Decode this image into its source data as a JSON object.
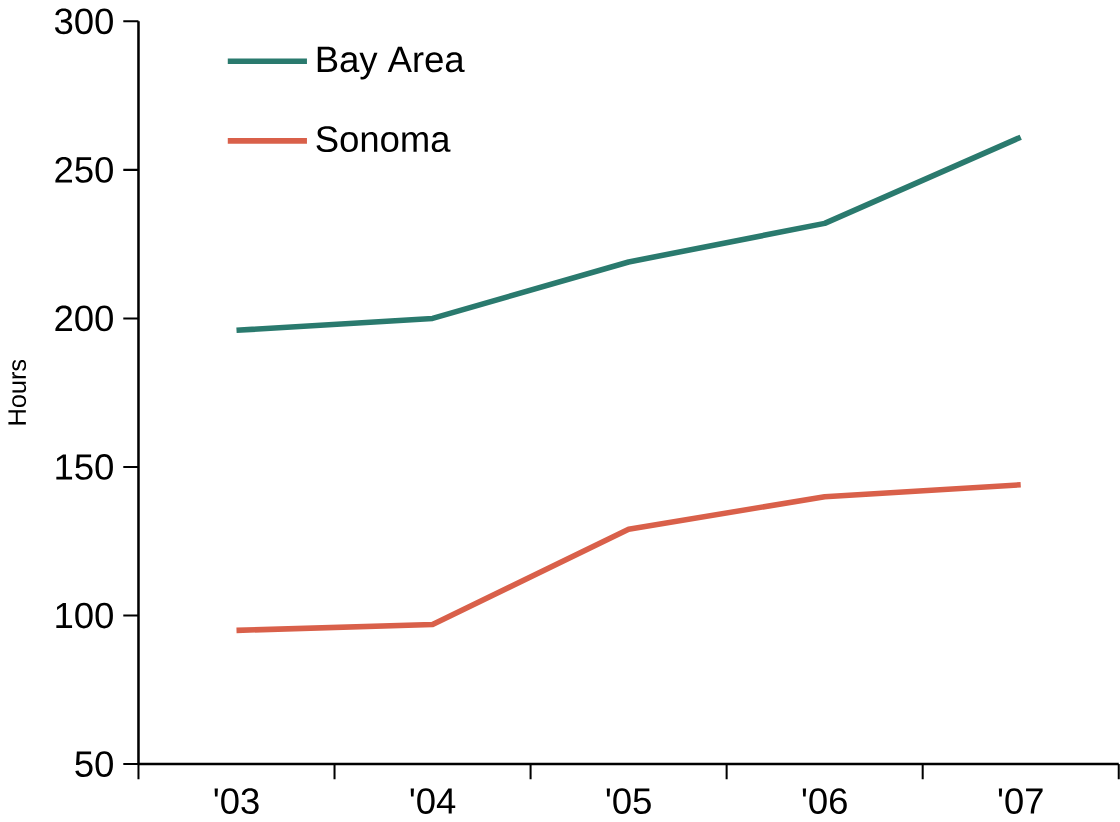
{
  "chart_data": {
    "type": "line",
    "ylabel": "Hours",
    "categories": [
      "'03",
      "'04",
      "'05",
      "'06",
      "'07"
    ],
    "series": [
      {
        "name": "Bay Area",
        "color": "#2a7a6e",
        "values": [
          196,
          200,
          219,
          232,
          261
        ]
      },
      {
        "name": "Sonoma",
        "color": "#d9604a",
        "values": [
          95,
          97,
          129,
          140,
          144
        ]
      }
    ],
    "ylim": [
      50,
      300
    ],
    "yticks": [
      50,
      100,
      150,
      200,
      250,
      300
    ],
    "legend": "top left",
    "grid": false,
    "marker": "none",
    "line_style": "solid"
  }
}
